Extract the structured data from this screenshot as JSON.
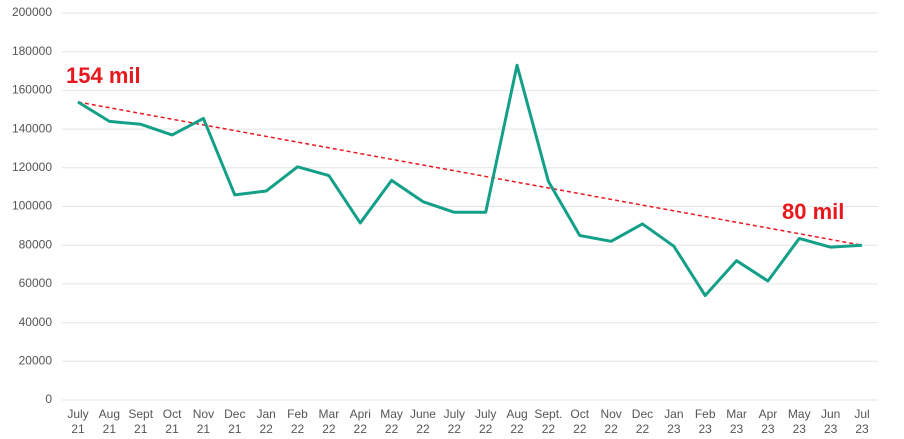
{
  "chart_data": {
    "type": "line",
    "categories": [
      "July 21",
      "Aug 21",
      "Sept 21",
      "Oct 21",
      "Nov 21",
      "Dec 21",
      "Jan 22",
      "Feb 22",
      "Mar 22",
      "Apri 22",
      "May 22",
      "June 22",
      "July 22",
      "July 22",
      "Aug 22",
      "Sept. 22",
      "Oct 22",
      "Nov 22",
      "Dec 22",
      "Jan 23",
      "Feb 23",
      "Mar 23",
      "Apr 23",
      "May 23",
      "Jun 23",
      "Jul 23"
    ],
    "series": [
      {
        "color": "#14a088",
        "values": [
          154000,
          144000,
          142500,
          137000,
          145500,
          106000,
          108000,
          120500,
          116000,
          91500,
          113500,
          102500,
          97000,
          97000,
          173000,
          113000,
          85000,
          82000,
          91000,
          79500,
          54000,
          72000,
          61500,
          83500,
          79000,
          80000
        ]
      }
    ],
    "trend": {
      "color": "#e8191e",
      "values": [
        154000,
        80000
      ]
    },
    "annotations": [
      "154 mil",
      "80 mil"
    ],
    "ylim": [
      0,
      200000
    ],
    "yticks": [
      0,
      20000,
      40000,
      60000,
      80000,
      100000,
      120000,
      140000,
      160000,
      180000,
      200000
    ],
    "grid": true
  }
}
